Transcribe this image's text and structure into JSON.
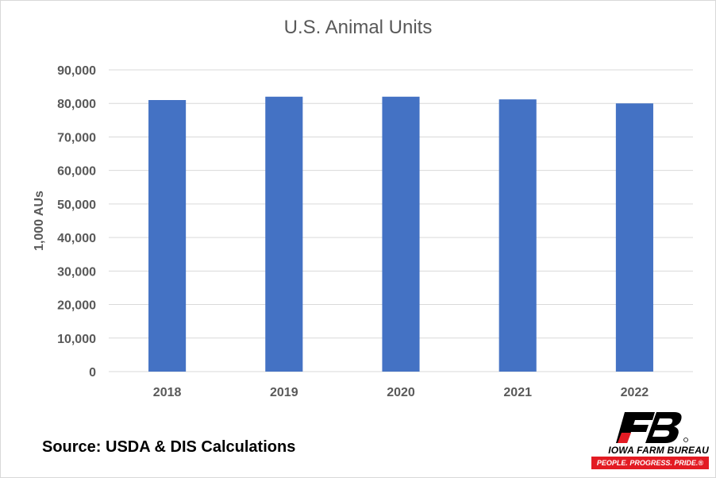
{
  "chart_data": {
    "type": "bar",
    "title": "U.S. Animal Units",
    "xlabel": "",
    "ylabel": "1,000 AUs",
    "categories": [
      "2018",
      "2019",
      "2020",
      "2021",
      "2022"
    ],
    "values": [
      81000,
      82000,
      82000,
      81200,
      80000
    ],
    "ylim": [
      0,
      90000
    ],
    "yticks": [
      0,
      10000,
      20000,
      30000,
      40000,
      50000,
      60000,
      70000,
      80000,
      90000
    ],
    "ytick_labels": [
      "0",
      "10,000",
      "20,000",
      "30,000",
      "40,000",
      "50,000",
      "60,000",
      "70,000",
      "80,000",
      "90,000"
    ],
    "grid": true,
    "legend": "none",
    "bar_color": "#4472c4",
    "grid_color": "#d9d9d9",
    "text_color": "#595959"
  },
  "source": "Source: USDA & DIS Calculations",
  "logo": {
    "name": "IOWA FARM BUREAU",
    "tagline": "PEOPLE. PROGRESS. PRIDE.®",
    "mark": "FB",
    "brand_color": "#e31b23"
  }
}
